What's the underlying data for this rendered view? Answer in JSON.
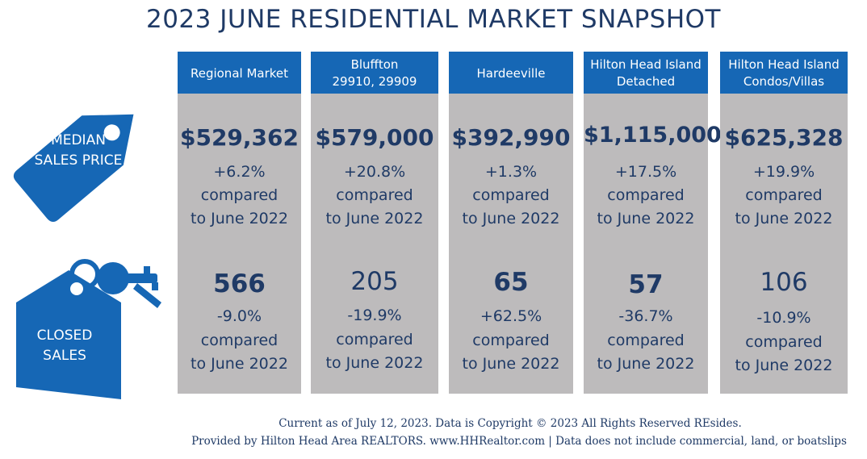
{
  "title": "2023 JUNE RESIDENTIAL MARKET SNAPSHOT",
  "colors": {
    "primary": "#1667b5",
    "text": "#1f3a66",
    "panel": "#bdbbbc"
  },
  "labels": {
    "median_line1": "MEDIAN",
    "median_line2": "SALES PRICE",
    "closed_line1": "CLOSED",
    "closed_line2": "SALES",
    "tag_icon": "price-tag-icon",
    "house_icon": "house-keys-icon"
  },
  "columns": [
    {
      "name1": "Regional Market",
      "name2": "",
      "price": "$529,362",
      "price_change": "+6.2%",
      "sales": "566",
      "sales_change": "-9.0%"
    },
    {
      "name1": "Bluffton",
      "name2": "29910, 29909",
      "price": "$579,000",
      "price_change": "+20.8%",
      "sales": "205",
      "sales_change": "-19.9%"
    },
    {
      "name1": "Hardeeville",
      "name2": "",
      "price": "$392,990",
      "price_change": "+1.3%",
      "sales": "65",
      "sales_change": "+62.5%"
    },
    {
      "name1": "Hilton Head Island",
      "name2": "Detached",
      "price": "$1,115,000",
      "price_change": "+17.5%",
      "sales": "57",
      "sales_change": "-36.7%"
    },
    {
      "name1": "Hilton Head Island",
      "name2": "Condos/Villas",
      "price": "$625,328",
      "price_change": "+19.9%",
      "sales": "106",
      "sales_change": "-10.9%"
    }
  ],
  "comparison": {
    "line1": "compared",
    "line2": "to June 2022"
  },
  "footer": {
    "line1": "Current as of July 12, 2023. Data is Copyright © 2023  All Rights Reserved REsides.",
    "line2": "Provided by Hilton Head Area REALTORS.  www.HHRealtor.com | Data does not include commercial, land, or boatslips"
  }
}
